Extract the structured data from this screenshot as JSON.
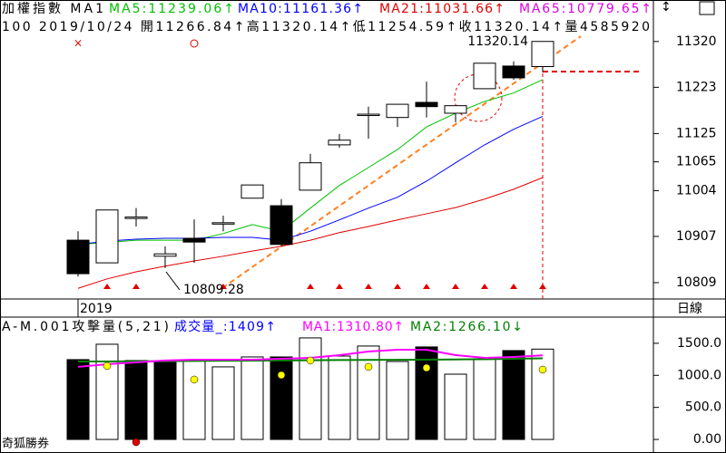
{
  "chart_data": [
    {
      "type": "candlestick",
      "title": "加權指數 MA1",
      "info": "100 2019/10/24 開11266.84↑高11320.14↑低11254.59↑收11320.14↑量4585920",
      "categories": [
        "2019",
        null,
        null,
        null,
        null,
        null,
        null,
        null,
        null,
        null,
        null,
        null,
        null,
        null,
        null,
        null,
        null
      ],
      "ohlc": [
        [
          10899,
          10918,
          10822,
          10828
        ],
        [
          10851,
          10963,
          10851,
          10963
        ],
        [
          10945,
          10967,
          10928,
          10948
        ],
        [
          10865,
          10886,
          10840,
          10870
        ],
        [
          10903,
          10943,
          10851,
          10895
        ],
        [
          10934,
          10951,
          10918,
          10936
        ],
        [
          10988,
          11016,
          10988,
          11016
        ],
        [
          10972,
          10986,
          10886,
          10890
        ],
        [
          11005,
          11082,
          11005,
          11063
        ],
        [
          11101,
          11124,
          11095,
          11111
        ],
        [
          11164,
          11182,
          11114,
          11166
        ],
        [
          11159,
          11187,
          11139,
          11187
        ],
        [
          11191,
          11235,
          11159,
          11182
        ],
        [
          11168,
          11184,
          11149,
          11184
        ],
        [
          11220,
          11274,
          11220,
          11274
        ],
        [
          11268,
          11278,
          11239,
          11243
        ],
        [
          11266.84,
          11320.14,
          11254.59,
          11320.14
        ]
      ],
      "up_color": "#ffffff",
      "down_color": "#000000",
      "series": [
        {
          "name": "MA5:11239.06↑",
          "color": "#00c000",
          "values": [
            10890,
            10894,
            10899,
            10899,
            10899,
            10913,
            10932,
            10918,
            10967,
            11015,
            11053,
            11091,
            11139,
            11168,
            11193,
            11211,
            11239.06
          ]
        },
        {
          "name": "MA10:11161.36↑",
          "color": "#0000ff",
          "values": [
            10890,
            10897,
            10901,
            10903,
            10903,
            10905,
            10905,
            10899,
            10918,
            10942,
            10967,
            10990,
            11024,
            11063,
            11101,
            11134,
            11161.36
          ]
        },
        {
          "name": "MA21:11031.66↑",
          "color": "#e00000",
          "values": [
            10797,
            10817,
            10832,
            10844,
            10855,
            10865,
            10876,
            10886,
            10899,
            10915,
            10928,
            10942,
            10955,
            10968,
            10986,
            11007,
            11031.66
          ]
        }
      ],
      "extra_legend": {
        "name": "MA65:10779.65↑",
        "color": "#e000e0"
      },
      "annotations": [
        "11320.14",
        "10809.28"
      ],
      "ylim": [
        10784,
        11335
      ],
      "yticks": [
        11320,
        11223,
        11125,
        11065,
        11004,
        10907,
        10809
      ]
    },
    {
      "type": "bar",
      "title": "A-M.001攻擊量(5,21)",
      "series": [
        {
          "name": "成交量_:1409↑",
          "color": "#0000ff",
          "values": [
            1245,
            1485,
            1231,
            1202,
            1231,
            1132,
            1287,
            1287,
            1584,
            1301,
            1457,
            1216,
            1443,
            1018,
            1259,
            1386,
            1409
          ],
          "bar_colors": [
            "#000000",
            "#ffffff",
            "#000000",
            "#000000",
            "#ffffff",
            "#ffffff",
            "#ffffff",
            "#000000",
            "#ffffff",
            "#ffffff",
            "#ffffff",
            "#ffffff",
            "#000000",
            "#ffffff",
            "#ffffff",
            "#000000",
            "#ffffff"
          ]
        },
        {
          "name": "MA1:1310.80↑",
          "color": "#ff00ff",
          "values": [
            1132,
            1174,
            1202,
            1231,
            1245,
            1245,
            1245,
            1259,
            1273,
            1315,
            1372,
            1400,
            1400,
            1315,
            1273,
            1287,
            1310.8
          ]
        },
        {
          "name": "MA2:1266.10↓",
          "color": "#008000",
          "values": [
            1216,
            1216,
            1220,
            1222,
            1225,
            1228,
            1230,
            1232,
            1235,
            1238,
            1240,
            1243,
            1245,
            1248,
            1252,
            1258,
            1266.1
          ]
        },
        {
          "color": "#ffff00",
          "values": [
            null,
            1146,
            null,
            null,
            934,
            null,
            null,
            1004,
            1231,
            null,
            1132,
            null,
            1117,
            null,
            null,
            null,
            1089
          ]
        },
        {
          "color": "#e00000",
          "values": [
            null,
            null,
            -42,
            null,
            null,
            null,
            null,
            null,
            null,
            null,
            null,
            null,
            null,
            null,
            null,
            null,
            null
          ]
        }
      ],
      "ylim": [
        -70,
        1880
      ],
      "yticks": [
        {
          "value": 0,
          "label": "0.00"
        },
        {
          "value": 500,
          "label": "500.0"
        },
        {
          "value": 1000,
          "label": "1000.0"
        },
        {
          "value": 1500,
          "label": "1500.0"
        }
      ]
    }
  ],
  "period_label": "日線",
  "brand": "奇狐勝券"
}
